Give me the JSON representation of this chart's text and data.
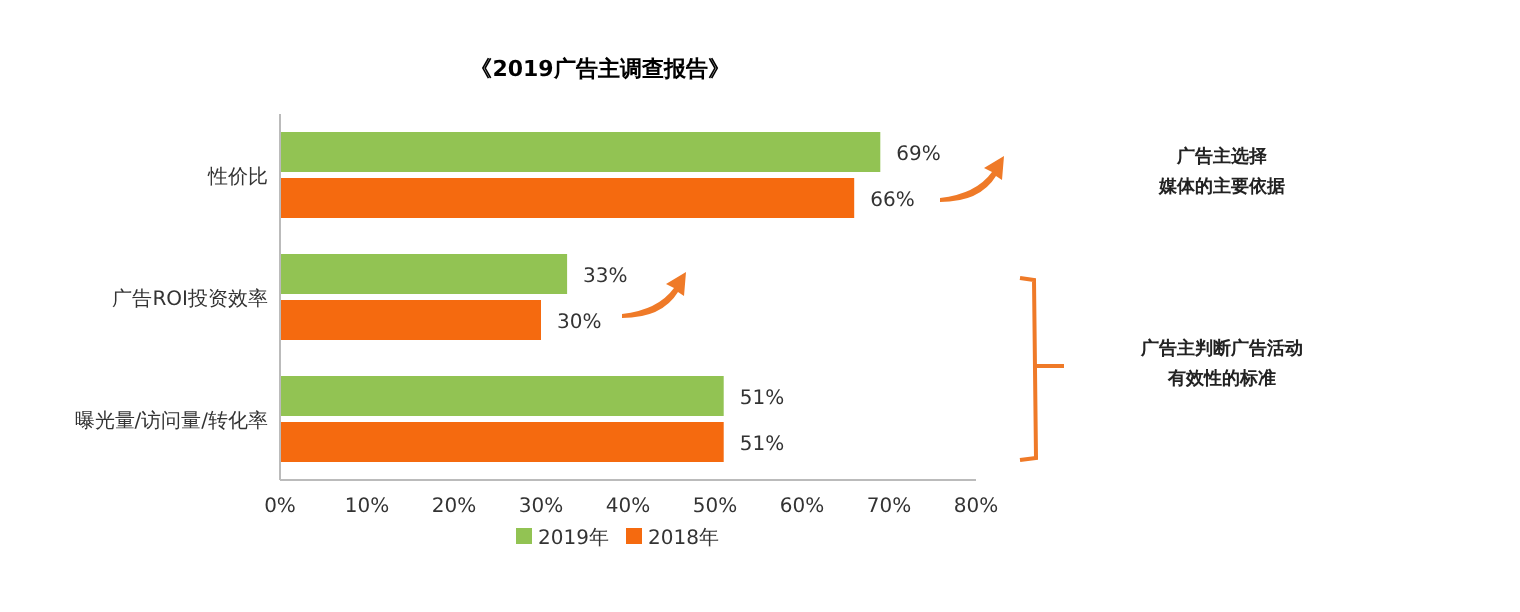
{
  "chart_data": {
    "type": "bar",
    "orientation": "horizontal",
    "title": "《2019广告主调查报告》",
    "categories": [
      "性价比",
      "广告ROI投资效率",
      "曝光量/访问量/转化率"
    ],
    "series": [
      {
        "name": "2019年",
        "color": "#92c353",
        "values": [
          69,
          33,
          51
        ],
        "value_labels": [
          "69%",
          "33%",
          "51%"
        ]
      },
      {
        "name": "2018年",
        "color": "#f56a0f",
        "values": [
          66,
          30,
          51
        ],
        "value_labels": [
          "66%",
          "30%",
          "51%"
        ]
      }
    ],
    "xlim": [
      0,
      80
    ],
    "xticks": [
      {
        "value": 0,
        "label": "0%"
      },
      {
        "value": 10,
        "label": "10%"
      },
      {
        "value": 20,
        "label": "20%"
      },
      {
        "value": 30,
        "label": "30%"
      },
      {
        "value": 40,
        "label": "40%"
      },
      {
        "value": 50,
        "label": "50%"
      },
      {
        "value": 60,
        "label": "60%"
      },
      {
        "value": 70,
        "label": "70%"
      },
      {
        "value": 80,
        "label": "80%"
      }
    ],
    "annotations": [
      "广告主选择",
      "媒体的主要依据",
      "广告主判断广告活动",
      "有效性的标准"
    ],
    "legend": "bottom",
    "grid": false
  }
}
